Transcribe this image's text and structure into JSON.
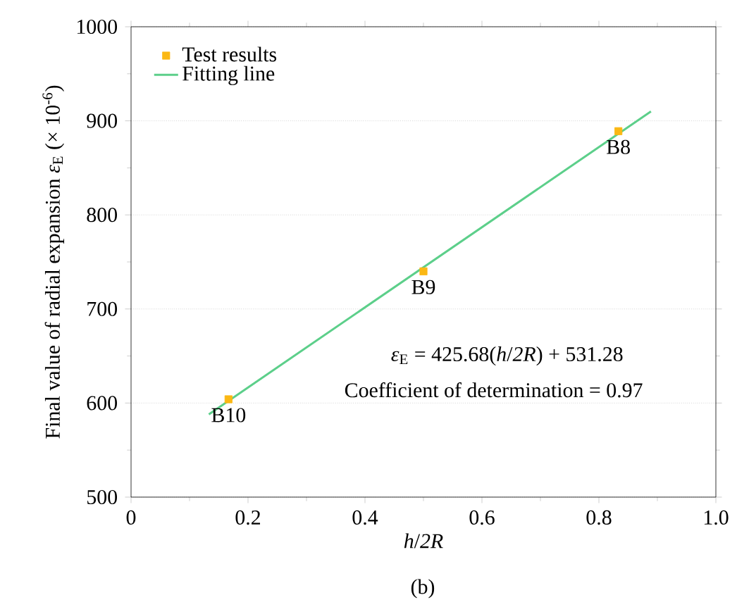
{
  "chart_data": {
    "type": "scatter",
    "xlabel": "*h*/*2R*",
    "ylabel": "Final value of radial  expansion *ε*$_{E}$ (× 10$^{-6}$)",
    "xlim": [
      0,
      1.0
    ],
    "ylim": [
      500,
      1000
    ],
    "xticks": [
      0,
      {
        "value": 0.2,
        "label": "0.2"
      },
      {
        "value": 0.4,
        "label": "0.4"
      },
      {
        "value": 0.6,
        "label": "0.6"
      },
      {
        "value": 0.8,
        "label": "0.8"
      },
      {
        "value": 1.0,
        "label": "1.0"
      }
    ],
    "yticks": [
      500,
      600,
      700,
      800,
      900,
      1000
    ],
    "grid": "y",
    "legend": "top left",
    "series": [
      {
        "name": "Test results",
        "marker": "square",
        "color": "#fbb814",
        "x": [
          0.1667,
          0.5,
          0.8333
        ],
        "values": [
          604,
          740,
          889
        ]
      },
      {
        "name": "Fitting line",
        "type": "line",
        "marker": "none",
        "line_style": "solid",
        "color": "#5ccf8a",
        "x": [
          0.133,
          0.889
        ],
        "values": [
          588,
          910
        ]
      }
    ],
    "annotations": [
      {
        "text": "B10",
        "x": 0.1667,
        "y": 604
      },
      {
        "text": "B9",
        "x": 0.5,
        "y": 740
      },
      {
        "text": "B8",
        "x": 0.8333,
        "y": 889
      },
      "*ε*$_{E}$ = 425.68(*h*/*2R*) + 531.28",
      "Coefficient of determination = 0.97",
      "(b)"
    ]
  }
}
